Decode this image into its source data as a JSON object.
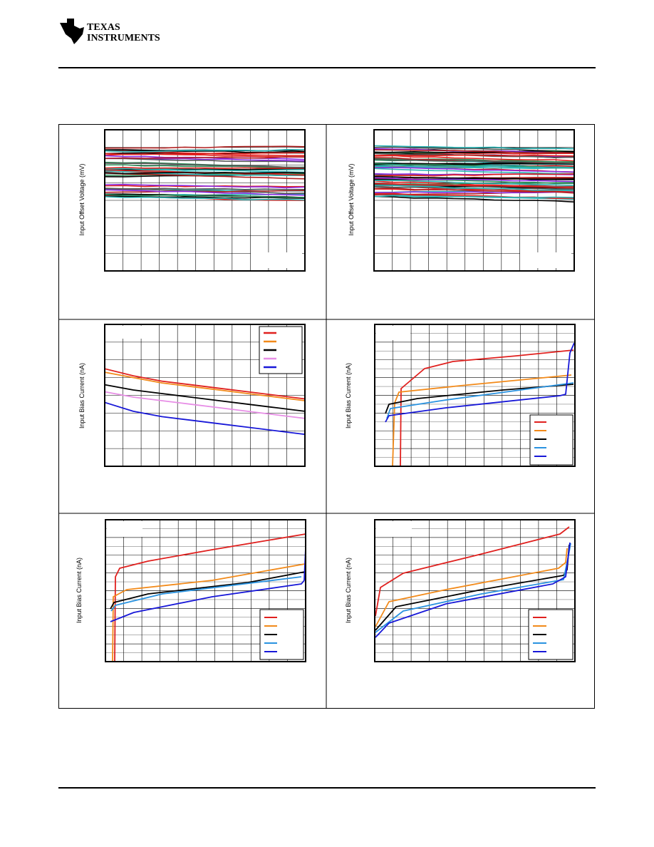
{
  "header": {
    "company_line1": "TEXAS",
    "company_line2": "INSTRUMENTS"
  },
  "colors": {
    "red": "#e0201e",
    "orange": "#f28a1a",
    "black": "#000000",
    "violet": "#e78ee6",
    "lightblue": "#2a93e0",
    "blue": "#1818d8",
    "teal": "#2ab4b4"
  },
  "panels": [
    {
      "ylabel": "Input Offset Voltage (mV)"
    },
    {
      "ylabel": "Input Offset Voltage (mV)"
    },
    {
      "ylabel": "Input Bias Current (nA)"
    },
    {
      "ylabel": "Input Bias Current (nA)"
    },
    {
      "ylabel": "Input Bias Current (nA)"
    },
    {
      "ylabel": "Input Bias Current (nA)"
    }
  ],
  "chart_data": [
    {
      "type": "line",
      "ylabel": "Input Offset Voltage (mV)",
      "legend": "none",
      "grid": true,
      "series_count": 40
    },
    {
      "type": "line",
      "ylabel": "Input Offset Voltage (mV)",
      "legend": "none",
      "grid": true,
      "series_count": 60
    },
    {
      "type": "line",
      "ylabel": "Input Bias Current (nA)",
      "legend": "top-right",
      "grid": true,
      "series": [
        {
          "values": [
            5.5,
            5.1,
            4.8,
            4.6,
            4.4,
            4.2,
            4.0,
            3.8
          ]
        },
        {
          "values": [
            5.3,
            5.0,
            4.7,
            4.5,
            4.3,
            4.1,
            3.9,
            3.7
          ]
        },
        {
          "values": [
            4.6,
            4.3,
            4.1,
            3.9,
            3.7,
            3.5,
            3.3,
            3.1
          ]
        },
        {
          "values": [
            4.2,
            3.9,
            3.7,
            3.5,
            3.3,
            3.1,
            2.9,
            2.7
          ]
        },
        {
          "values": [
            3.6,
            3.1,
            2.8,
            2.6,
            2.4,
            2.2,
            2.0,
            1.8
          ]
        }
      ]
    },
    {
      "type": "line",
      "ylabel": "Input Bias Current (nA)",
      "legend": "bottom-right",
      "grid": true,
      "series_count": 5
    },
    {
      "type": "line",
      "ylabel": "Input Bias Current (nA)",
      "legend": "bottom-right",
      "grid": true,
      "series_count": 5
    },
    {
      "type": "line",
      "ylabel": "Input Bias Current (nA)",
      "legend": "bottom-right",
      "grid": true,
      "series_count": 5
    }
  ]
}
